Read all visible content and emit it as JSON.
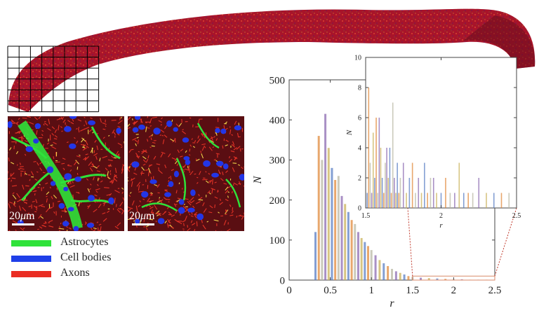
{
  "figure": {
    "scalebar_a": {
      "value": "20",
      "unit": "m",
      "prefix": "μ"
    },
    "scalebar_b": {
      "value": "20",
      "unit": "m",
      "prefix": "μ"
    },
    "legend": [
      {
        "label": "Astrocytes",
        "color": "#2fe23a"
      },
      {
        "label": "Cell bodies",
        "color": "#1f3fe8"
      },
      {
        "label": "Axons",
        "color": "#ea2d23"
      }
    ],
    "tissue_color": "#b0182a"
  },
  "chart_data": [
    {
      "type": "bar",
      "name": "main-histogram",
      "xlabel": "r",
      "ylabel": "N",
      "xlim": [
        0,
        2.5
      ],
      "ylim": [
        0,
        500
      ],
      "xticks": [
        0,
        0.5,
        1,
        1.5,
        2,
        2.5
      ],
      "xtick_labels": [
        "0",
        "0.5",
        "1",
        "1.5",
        "2",
        "2.5"
      ],
      "yticks": [
        0,
        100,
        200,
        300,
        400,
        500
      ],
      "ytick_labels": [
        "0",
        "100",
        "200",
        "300",
        "400",
        "500"
      ],
      "series_colors": [
        "#5b7fc4",
        "#e08a3c",
        "#b9b8a4",
        "#8c6bb1",
        "#c9b15a"
      ],
      "x": [
        0.32,
        0.36,
        0.4,
        0.44,
        0.48,
        0.52,
        0.56,
        0.6,
        0.64,
        0.68,
        0.72,
        0.76,
        0.8,
        0.84,
        0.88,
        0.92,
        0.96,
        1.0,
        1.05,
        1.1,
        1.15,
        1.2,
        1.25,
        1.3,
        1.35,
        1.4,
        1.45,
        1.5,
        1.6,
        1.7,
        1.8,
        1.9,
        2.0,
        2.1,
        2.2,
        2.3,
        2.4
      ],
      "values": [
        120,
        360,
        300,
        415,
        330,
        280,
        250,
        260,
        210,
        190,
        170,
        150,
        140,
        120,
        105,
        95,
        85,
        75,
        62,
        50,
        42,
        35,
        28,
        22,
        18,
        14,
        10,
        8,
        6,
        5,
        4,
        3,
        2,
        2,
        1,
        1,
        1
      ],
      "zoom_region": {
        "x": [
          1.5,
          2.5
        ],
        "y": [
          0,
          10
        ]
      }
    },
    {
      "type": "bar",
      "name": "inset-histogram",
      "xlabel": "r",
      "ylabel": "N",
      "xlim": [
        1.5,
        2.5
      ],
      "ylim": [
        0,
        10
      ],
      "xticks": [
        1.5,
        2,
        2.5
      ],
      "xtick_labels": [
        "1.5",
        "2",
        "2.5"
      ],
      "yticks": [
        0,
        2,
        4,
        6,
        8,
        10
      ],
      "ytick_labels": [
        "0",
        "2",
        "4",
        "6",
        "8",
        "10"
      ],
      "x": [
        1.51,
        1.52,
        1.53,
        1.54,
        1.55,
        1.56,
        1.57,
        1.58,
        1.59,
        1.6,
        1.61,
        1.62,
        1.63,
        1.64,
        1.65,
        1.66,
        1.67,
        1.68,
        1.69,
        1.7,
        1.71,
        1.72,
        1.73,
        1.75,
        1.77,
        1.79,
        1.81,
        1.83,
        1.85,
        1.87,
        1.89,
        1.91,
        1.93,
        1.95,
        1.97,
        2.0,
        2.03,
        2.06,
        2.09,
        2.12,
        2.15,
        2.18,
        2.21,
        2.25,
        2.3,
        2.35,
        2.4,
        2.45
      ],
      "values": [
        1,
        8,
        3,
        1,
        5,
        2,
        6,
        1,
        6,
        4,
        2,
        1,
        3,
        4,
        2,
        4,
        1,
        7,
        2,
        1,
        3,
        1,
        2,
        3,
        1,
        2,
        3,
        1,
        2,
        1,
        3,
        1,
        2,
        2,
        1,
        1,
        2,
        1,
        1,
        3,
        1,
        1,
        1,
        2,
        1,
        1,
        1,
        1
      ]
    }
  ]
}
